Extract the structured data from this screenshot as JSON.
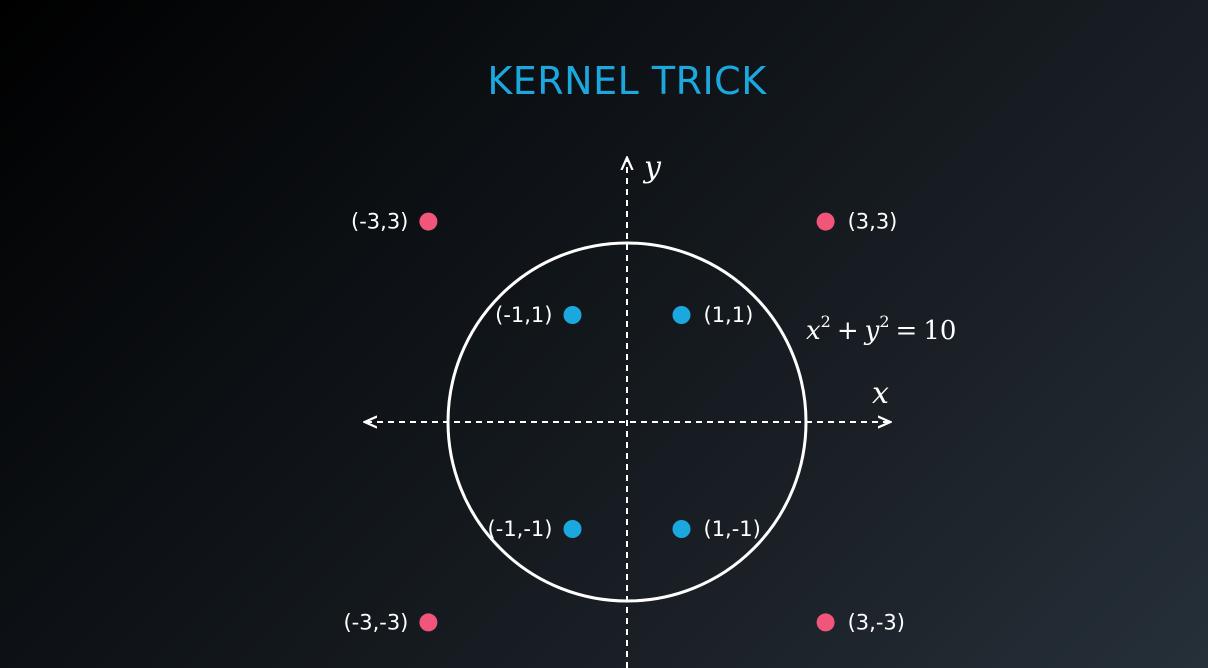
{
  "slide": {
    "title": "KERNEL TRICK"
  },
  "axes": {
    "x_label": "x",
    "y_label": "y"
  },
  "equation": {
    "lhs_x": "x",
    "lhs_exp1": "2",
    "plus": "+",
    "lhs_y": "y",
    "lhs_exp2": "2",
    "equals": "=",
    "rhs": "10"
  },
  "colors": {
    "title": "#1ba8df",
    "inner_point": "#1ba8df",
    "outer_point": "#f2557a",
    "line": "#ffffff"
  },
  "inner_points": [
    {
      "label": "(-1,1)",
      "x": -1,
      "y": 1
    },
    {
      "label": "(1,1)",
      "x": 1,
      "y": 1
    },
    {
      "label": "(-1,-1)",
      "x": -1,
      "y": -1
    },
    {
      "label": "(1,-1)",
      "x": 1,
      "y": -1
    }
  ],
  "outer_points": [
    {
      "label": "(-3,3)",
      "x": -3,
      "y": 3
    },
    {
      "label": "(3,3)",
      "x": 3,
      "y": 3
    },
    {
      "label": "(-3,-3)",
      "x": -3,
      "y": -3
    },
    {
      "label": "(3,-3)",
      "x": 3,
      "y": -3
    }
  ],
  "circle": {
    "radius_squared": 10
  }
}
